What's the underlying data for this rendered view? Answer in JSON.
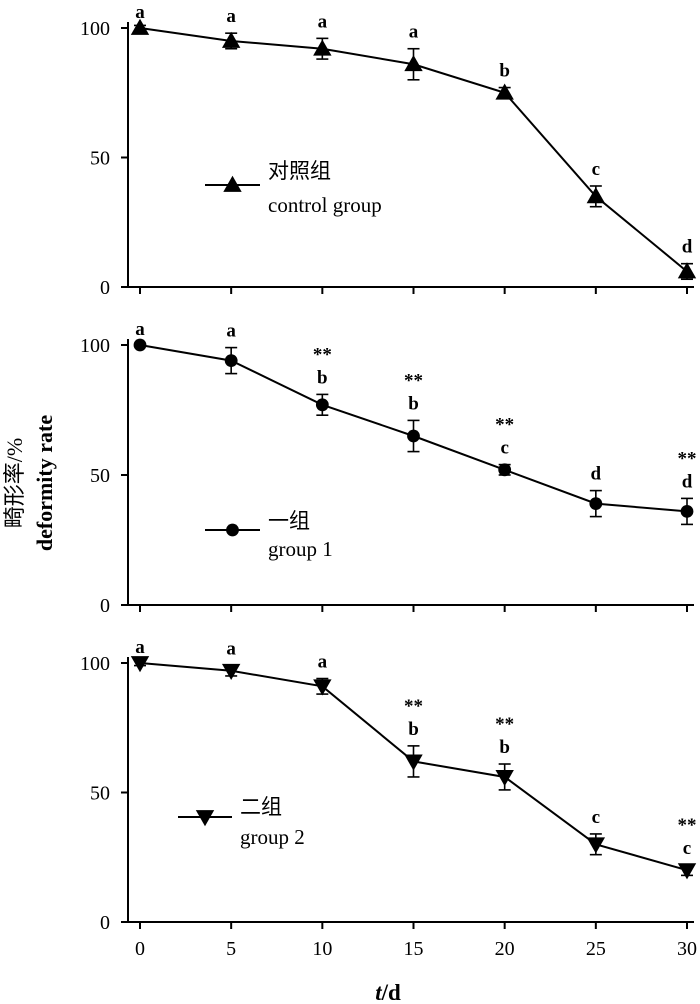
{
  "colors": {
    "ink": "#000000",
    "background": "#ffffff"
  },
  "chart_data": [
    {
      "type": "line",
      "marker": "triangle-up",
      "ylim": [
        0,
        100
      ],
      "xlim": [
        0,
        30
      ],
      "x_ticks": [
        0,
        5,
        10,
        15,
        20,
        25,
        30
      ],
      "y_ticks": [
        0,
        50,
        100
      ],
      "show_x_tick_labels": false,
      "legend": {
        "zh": "对照组",
        "en": "control group",
        "placement": "center-left"
      },
      "series": [
        {
          "name": "control group",
          "x": [
            0,
            5,
            10,
            15,
            20,
            25,
            30
          ],
          "values": [
            100,
            95,
            92,
            86,
            75,
            35,
            6
          ],
          "errors": [
            1,
            3,
            4,
            6,
            2,
            4,
            3
          ]
        }
      ],
      "letters": [
        "a",
        "a",
        "a",
        "a",
        "b",
        "c",
        "d"
      ],
      "stars": [
        "",
        "",
        "",
        "",
        "",
        "",
        ""
      ]
    },
    {
      "type": "line",
      "marker": "circle",
      "ylim": [
        0,
        100
      ],
      "xlim": [
        0,
        30
      ],
      "x_ticks": [
        0,
        5,
        10,
        15,
        20,
        25,
        30
      ],
      "y_ticks": [
        0,
        50,
        100
      ],
      "show_x_tick_labels": false,
      "legend": {
        "zh": "一组",
        "en": "group 1",
        "placement": "center-left"
      },
      "series": [
        {
          "name": "group 1",
          "x": [
            0,
            5,
            10,
            15,
            20,
            25,
            30
          ],
          "values": [
            100,
            94,
            77,
            65,
            52,
            39,
            36
          ],
          "errors": [
            0,
            5,
            4,
            6,
            2,
            5,
            5
          ]
        }
      ],
      "letters": [
        "a",
        "a",
        "b",
        "b",
        "c",
        "d",
        "d"
      ],
      "stars": [
        "",
        "",
        "**",
        "**",
        "**",
        "",
        "**"
      ]
    },
    {
      "type": "line",
      "marker": "triangle-down",
      "ylim": [
        0,
        100
      ],
      "xlim": [
        0,
        30
      ],
      "x_ticks": [
        0,
        5,
        10,
        15,
        20,
        25,
        30
      ],
      "y_ticks": [
        0,
        50,
        100
      ],
      "show_x_tick_labels": true,
      "legend": {
        "zh": "二组",
        "en": "group 2",
        "placement": "center-left"
      },
      "series": [
        {
          "name": "group 2",
          "x": [
            0,
            5,
            10,
            15,
            20,
            25,
            30
          ],
          "values": [
            100,
            97,
            91,
            62,
            56,
            30,
            20
          ],
          "errors": [
            1,
            2,
            3,
            6,
            5,
            4,
            2
          ]
        }
      ],
      "letters": [
        "a",
        "a",
        "a",
        "b",
        "b",
        "c",
        "c"
      ],
      "stars": [
        "",
        "",
        "",
        "**",
        "**",
        "",
        "**"
      ]
    }
  ],
  "axes": {
    "y_label_zh": "畸形率/%",
    "y_label_en": "deformity rate",
    "x_label_t": "t",
    "x_label_unit": "/d"
  }
}
